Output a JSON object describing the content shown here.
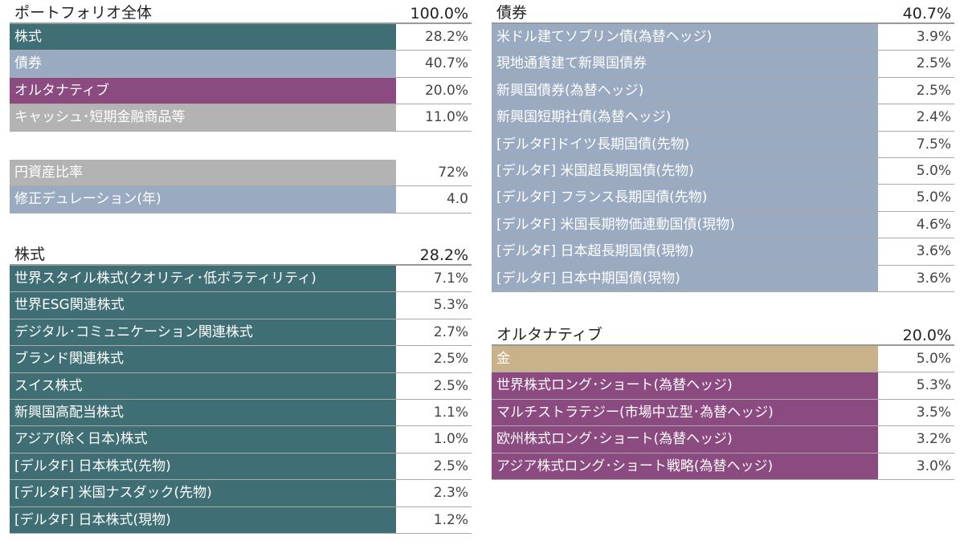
{
  "colors": {
    "equity": "#3f6f74",
    "bond": "#9aabc1",
    "alternative": "#8b4a80",
    "cash": "#b3b3b3",
    "gold": "#c9b18a"
  },
  "portfolio": {
    "title": "ポートフォリオ全体",
    "total": "100.0%",
    "rows": [
      {
        "label": "株式",
        "value": "28.2%",
        "color": "teal"
      },
      {
        "label": "債券",
        "value": "40.7%",
        "color": "blue"
      },
      {
        "label": "オルタナティブ",
        "value": "20.0%",
        "color": "purple"
      },
      {
        "label": "キャッシュ･短期金融商品等",
        "value": "11.0%",
        "color": "gray"
      }
    ]
  },
  "metrics": {
    "rows": [
      {
        "label": "円資産比率",
        "value": "72%",
        "color": "gray"
      },
      {
        "label": "修正デュレーション(年)",
        "value": "4.0",
        "color": "blue"
      }
    ]
  },
  "equity": {
    "title": "株式",
    "total": "28.2%",
    "rows": [
      {
        "label": "世界スタイル株式(クオリティ･低ボラティリティ)",
        "value": "7.1%"
      },
      {
        "label": "世界ESG関連株式",
        "value": "5.3%"
      },
      {
        "label": "デジタル･コミュニケーション関連株式",
        "value": "2.7%"
      },
      {
        "label": "ブランド関連株式",
        "value": "2.5%"
      },
      {
        "label": "スイス株式",
        "value": "2.5%"
      },
      {
        "label": "新興国高配当株式",
        "value": "1.1%"
      },
      {
        "label": "アジア(除く日本)株式",
        "value": "1.0%"
      },
      {
        "label": "[デルタF] 日本株式(先物)",
        "value": "2.5%"
      },
      {
        "label": "[デルタF] 米国ナスダック(先物)",
        "value": "2.3%"
      },
      {
        "label": "[デルタF] 日本株式(現物)",
        "value": "1.2%"
      }
    ]
  },
  "bonds": {
    "title": "債券",
    "total": "40.7%",
    "rows": [
      {
        "label": "米ドル建てソブリン債(為替ヘッジ)",
        "value": "3.9%"
      },
      {
        "label": "現地通貨建て新興国債券",
        "value": "2.5%"
      },
      {
        "label": "新興国債券(為替ヘッジ)",
        "value": "2.5%"
      },
      {
        "label": "新興国短期社債(為替ヘッジ)",
        "value": "2.4%"
      },
      {
        "label": "[デルタF]ドイツ長期国債(先物)",
        "value": "7.5%"
      },
      {
        "label": "[デルタF] 米国超長期国債(先物)",
        "value": "5.0%"
      },
      {
        "label": "[デルタF] フランス長期国債(先物)",
        "value": "5.0%"
      },
      {
        "label": "[デルタF] 米国長期物価連動国債(現物)",
        "value": "4.6%"
      },
      {
        "label": "[デルタF] 日本超長期国債(現物)",
        "value": "3.6%"
      },
      {
        "label": "[デルタF] 日本中期国債(現物)",
        "value": "3.6%"
      }
    ]
  },
  "alternatives": {
    "title": "オルタナティブ",
    "total": "20.0%",
    "rows": [
      {
        "label": "金",
        "value": "5.0%",
        "color": "gold"
      },
      {
        "label": "世界株式ロング･ショート(為替ヘッジ)",
        "value": "5.3%",
        "color": "purple"
      },
      {
        "label": "マルチストラテジー(市場中立型･為替ヘッジ)",
        "value": "3.5%",
        "color": "purple"
      },
      {
        "label": "欧州株式ロング･ショート(為替ヘッジ)",
        "value": "3.2%",
        "color": "purple"
      },
      {
        "label": "アジア株式ロング･ショート戦略(為替ヘッジ)",
        "value": "3.0%",
        "color": "purple"
      }
    ]
  }
}
